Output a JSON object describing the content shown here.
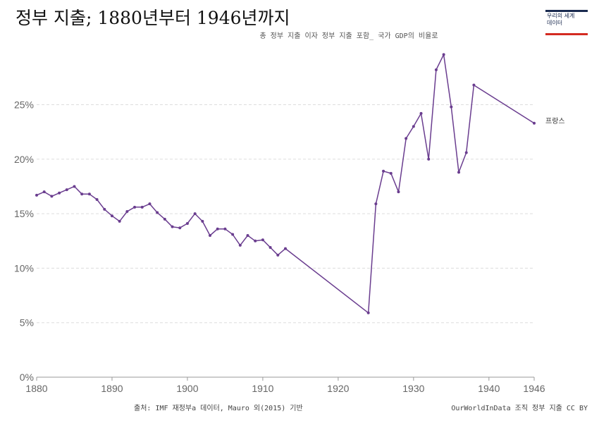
{
  "header": {
    "title": "정부 지출; 1880년부터 1946년까지",
    "subtitle": "총 정부 지출 이자 정부 지출 포함_ 국가 GDP의 비율로"
  },
  "logo": {
    "text": "우리의 세계\n데이터"
  },
  "footer": {
    "source": "출처: IMF 재정부a 데이터, Mauro 외(2015) 기반",
    "credit": "OurWorldInData 조직 정부 지출 CC BY"
  },
  "colors": {
    "series": "#6a3d8f",
    "grid": "#dddddd",
    "axis": "#999999"
  },
  "chart_data": {
    "type": "line",
    "title": "정부 지출; 1880년부터 1946년까지",
    "subtitle": "총 정부 지출 이자 정부 지출 포함_ 국가 GDP의 비율로",
    "xlim": [
      1880,
      1946
    ],
    "ylim": [
      0,
      30
    ],
    "x_ticks": [
      1880,
      1890,
      1900,
      1910,
      1920,
      1930,
      1940,
      1946
    ],
    "x_tick_labels": [
      "1880",
      "1890",
      "1900",
      "1910",
      "1920",
      "1930",
      "1940",
      "1946"
    ],
    "y_ticks": [
      0,
      5,
      10,
      15,
      20,
      25
    ],
    "y_tick_labels": [
      "0%",
      "5%",
      "10%",
      "15%",
      "20%",
      "25%"
    ],
    "grid": "horizontal dashed",
    "series": [
      {
        "name": "프랑스",
        "points": [
          [
            1880,
            16.7
          ],
          [
            1881,
            17.0
          ],
          [
            1882,
            16.6
          ],
          [
            1883,
            16.9
          ],
          [
            1884,
            17.2
          ],
          [
            1885,
            17.5
          ],
          [
            1886,
            16.8
          ],
          [
            1887,
            16.8
          ],
          [
            1888,
            16.3
          ],
          [
            1889,
            15.4
          ],
          [
            1890,
            14.8
          ],
          [
            1891,
            14.3
          ],
          [
            1892,
            15.2
          ],
          [
            1893,
            15.6
          ],
          [
            1894,
            15.6
          ],
          [
            1895,
            15.9
          ],
          [
            1896,
            15.1
          ],
          [
            1897,
            14.5
          ],
          [
            1898,
            13.8
          ],
          [
            1899,
            13.7
          ],
          [
            1900,
            14.1
          ],
          [
            1901,
            15.0
          ],
          [
            1902,
            14.3
          ],
          [
            1903,
            13.0
          ],
          [
            1904,
            13.6
          ],
          [
            1905,
            13.6
          ],
          [
            1906,
            13.1
          ],
          [
            1907,
            12.1
          ],
          [
            1908,
            13.0
          ],
          [
            1909,
            12.5
          ],
          [
            1910,
            12.6
          ],
          [
            1911,
            11.9
          ],
          [
            1912,
            11.2
          ],
          [
            1913,
            11.8
          ],
          [
            1924,
            5.9
          ],
          [
            1925,
            15.9
          ],
          [
            1926,
            18.9
          ],
          [
            1927,
            18.7
          ],
          [
            1928,
            17.0
          ],
          [
            1929,
            21.9
          ],
          [
            1930,
            23.0
          ],
          [
            1931,
            24.2
          ],
          [
            1932,
            20.0
          ],
          [
            1933,
            28.2
          ],
          [
            1934,
            29.6
          ],
          [
            1935,
            24.8
          ],
          [
            1936,
            18.8
          ],
          [
            1937,
            20.6
          ],
          [
            1938,
            26.8
          ],
          [
            1946,
            23.3
          ]
        ]
      }
    ]
  }
}
